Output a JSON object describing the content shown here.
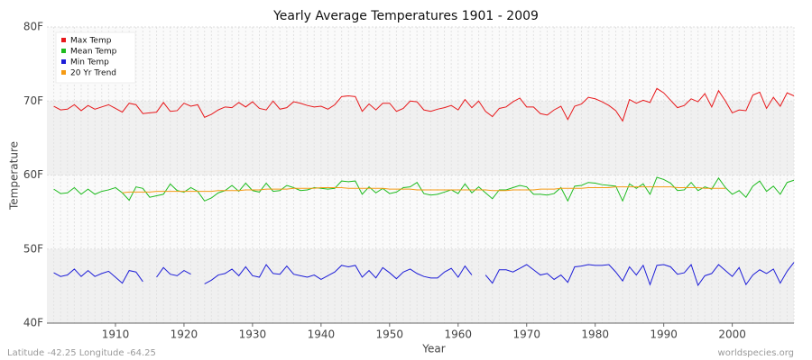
{
  "chart_data": {
    "type": "line",
    "title": "Yearly Average Temperatures 1901 - 2009",
    "x_label": "Year",
    "y_label": "Temperature",
    "footer_left": "Latitude -42.25 Longitude -64.25",
    "footer_right": "worldspecies.org",
    "legend": "upper left",
    "grid": true,
    "xlim": [
      1900,
      2009
    ],
    "xticks": [
      1910,
      1920,
      1930,
      1940,
      1950,
      1960,
      1970,
      1980,
      1990,
      2000
    ],
    "ylim": [
      40,
      80
    ],
    "yticks": [
      {
        "value": 40,
        "label": "40F"
      },
      {
        "value": 50,
        "label": "50F"
      },
      {
        "value": 60,
        "label": "60F"
      },
      {
        "value": 70,
        "label": "70F"
      },
      {
        "value": 80,
        "label": "80F"
      }
    ],
    "x": [
      1901,
      1902,
      1903,
      1904,
      1905,
      1906,
      1907,
      1908,
      1909,
      1910,
      1911,
      1912,
      1913,
      1914,
      1915,
      1916,
      1917,
      1918,
      1919,
      1920,
      1921,
      1922,
      1923,
      1924,
      1925,
      1926,
      1927,
      1928,
      1929,
      1930,
      1931,
      1932,
      1933,
      1934,
      1935,
      1936,
      1937,
      1938,
      1939,
      1940,
      1941,
      1942,
      1943,
      1944,
      1945,
      1946,
      1947,
      1948,
      1949,
      1950,
      1951,
      1952,
      1953,
      1954,
      1955,
      1956,
      1957,
      1958,
      1959,
      1960,
      1961,
      1962,
      1963,
      1964,
      1965,
      1966,
      1967,
      1968,
      1969,
      1970,
      1971,
      1972,
      1973,
      1974,
      1975,
      1976,
      1977,
      1978,
      1979,
      1980,
      1981,
      1982,
      1983,
      1984,
      1985,
      1986,
      1987,
      1988,
      1989,
      1990,
      1991,
      1992,
      1993,
      1994,
      1995,
      1996,
      1997,
      1998,
      1999,
      2000,
      2001,
      2002,
      2003,
      2004,
      2005,
      2006,
      2007,
      2008,
      2009
    ],
    "series": [
      {
        "name": "Max Temp",
        "color": "#e8181b",
        "values": [
          69.3,
          68.8,
          68.9,
          69.5,
          68.7,
          69.4,
          68.9,
          69.2,
          69.5,
          69.0,
          68.5,
          69.7,
          69.5,
          68.3,
          68.4,
          68.5,
          69.8,
          68.6,
          68.7,
          69.7,
          69.3,
          69.5,
          67.8,
          68.2,
          68.8,
          69.2,
          69.1,
          69.8,
          69.2,
          69.9,
          69.0,
          68.8,
          70.0,
          68.9,
          69.1,
          69.9,
          69.7,
          69.4,
          69.2,
          69.3,
          68.9,
          69.5,
          70.6,
          70.7,
          70.6,
          68.6,
          69.6,
          68.8,
          69.7,
          69.7,
          68.6,
          69.0,
          70.0,
          69.9,
          68.8,
          68.6,
          68.9,
          69.1,
          69.4,
          68.8,
          70.2,
          69.1,
          70.0,
          68.6,
          67.9,
          69.0,
          69.2,
          69.9,
          70.4,
          69.2,
          69.2,
          68.3,
          68.1,
          68.8,
          69.3,
          67.5,
          69.3,
          69.6,
          70.5,
          70.3,
          69.9,
          69.4,
          68.7,
          67.3,
          70.2,
          69.7,
          70.1,
          69.8,
          71.7,
          71.1,
          70.1,
          69.1,
          69.4,
          70.3,
          69.9,
          71.0,
          69.2,
          71.4,
          70.0,
          68.4,
          68.8,
          68.7,
          70.8,
          71.2,
          69.0,
          70.5,
          69.3,
          71.1,
          70.7
        ]
      },
      {
        "name": "Mean Temp",
        "color": "#1ebb1e",
        "values": [
          58.1,
          57.5,
          57.6,
          58.3,
          57.4,
          58.1,
          57.4,
          57.8,
          58.0,
          58.3,
          57.6,
          56.6,
          58.4,
          58.2,
          57.0,
          57.2,
          57.4,
          58.8,
          57.9,
          57.7,
          58.3,
          57.8,
          56.5,
          56.9,
          57.6,
          57.9,
          58.6,
          57.8,
          58.9,
          57.9,
          57.7,
          58.9,
          57.8,
          57.9,
          58.6,
          58.3,
          57.9,
          58.0,
          58.3,
          58.2,
          58.1,
          58.2,
          59.2,
          59.1,
          59.2,
          57.4,
          58.4,
          57.6,
          58.2,
          57.5,
          57.7,
          58.3,
          58.4,
          59.0,
          57.5,
          57.3,
          57.4,
          57.7,
          58.0,
          57.5,
          58.8,
          57.6,
          58.4,
          57.6,
          56.8,
          58.0,
          58.0,
          58.3,
          58.6,
          58.4,
          57.4,
          57.4,
          57.3,
          57.5,
          58.3,
          56.5,
          58.5,
          58.6,
          59.0,
          58.9,
          58.7,
          58.6,
          58.5,
          56.5,
          58.8,
          58.2,
          58.8,
          57.4,
          59.7,
          59.4,
          58.9,
          57.9,
          58.0,
          59.0,
          57.9,
          58.4,
          58.1,
          59.6,
          58.3,
          57.4,
          57.9,
          57.0,
          58.5,
          59.2,
          57.8,
          58.5,
          57.4,
          59.0,
          59.3
        ]
      },
      {
        "name": "Min Temp",
        "color": "#1d1dd8",
        "values": [
          46.8,
          46.3,
          46.5,
          47.3,
          46.3,
          47.1,
          46.3,
          46.7,
          47.0,
          46.2,
          45.4,
          47.1,
          46.9,
          45.6,
          null,
          46.2,
          47.5,
          46.6,
          46.4,
          47.1,
          46.6,
          null,
          45.3,
          45.8,
          46.5,
          46.7,
          47.3,
          46.4,
          47.6,
          46.4,
          46.2,
          47.9,
          46.7,
          46.6,
          47.7,
          46.6,
          46.4,
          46.2,
          46.5,
          45.9,
          46.4,
          46.9,
          47.8,
          47.6,
          47.8,
          46.2,
          47.1,
          46.1,
          47.5,
          46.8,
          46.0,
          46.9,
          47.3,
          46.7,
          46.3,
          46.1,
          46.1,
          46.9,
          47.4,
          46.2,
          47.7,
          46.5,
          null,
          46.5,
          45.4,
          47.2,
          47.2,
          46.9,
          47.4,
          47.9,
          47.2,
          46.5,
          46.7,
          45.9,
          46.5,
          45.5,
          47.6,
          47.7,
          47.9,
          47.8,
          47.8,
          47.9,
          46.9,
          45.7,
          47.6,
          46.5,
          47.8,
          45.2,
          47.8,
          47.9,
          47.6,
          46.6,
          46.8,
          47.9,
          45.1,
          46.4,
          46.7,
          47.9,
          47.1,
          46.3,
          47.5,
          45.2,
          46.5,
          47.2,
          46.7,
          47.3,
          45.4,
          47.0,
          48.2
        ]
      },
      {
        "name": "20 Yr Trend",
        "color": "#f59a13",
        "values": [
          null,
          null,
          null,
          null,
          null,
          null,
          null,
          null,
          null,
          null,
          57.6,
          57.7,
          57.7,
          57.7,
          57.7,
          57.8,
          57.8,
          57.8,
          57.8,
          57.8,
          57.8,
          57.8,
          57.8,
          57.8,
          57.9,
          57.9,
          57.9,
          57.9,
          58.0,
          58.0,
          58.0,
          58.1,
          58.1,
          58.1,
          58.1,
          58.2,
          58.2,
          58.2,
          58.2,
          58.3,
          58.3,
          58.3,
          58.3,
          58.2,
          58.2,
          58.2,
          58.2,
          58.2,
          58.2,
          58.1,
          58.1,
          58.1,
          58.1,
          58.0,
          58.0,
          58.0,
          58.0,
          58.0,
          58.0,
          58.0,
          58.0,
          58.0,
          58.0,
          58.0,
          57.9,
          57.9,
          57.9,
          58.0,
          58.0,
          58.0,
          58.0,
          58.1,
          58.1,
          58.1,
          58.2,
          58.2,
          58.2,
          58.2,
          58.3,
          58.3,
          58.3,
          58.3,
          58.4,
          58.4,
          58.4,
          58.4,
          58.4,
          58.4,
          58.4,
          58.4,
          58.4,
          58.3,
          58.3,
          58.3,
          58.3,
          58.2,
          58.2,
          58.2,
          58.2,
          null,
          null,
          null,
          null,
          null,
          null,
          null,
          null,
          null,
          null
        ]
      }
    ]
  }
}
